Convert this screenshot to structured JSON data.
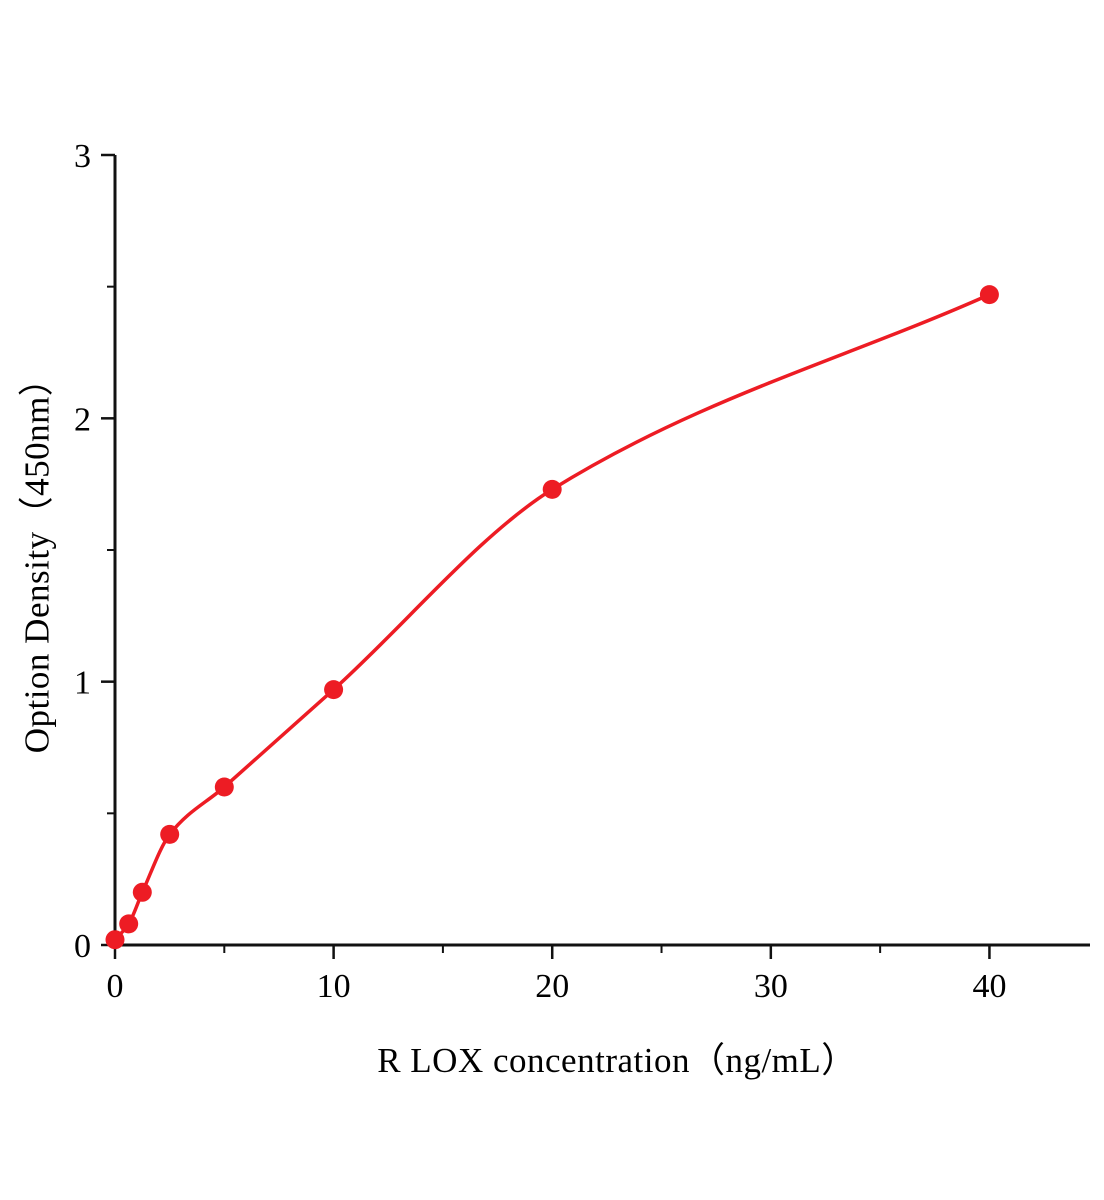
{
  "figure": {
    "background": "#ffffff",
    "axis_color": "#111111",
    "text_color": "#000000"
  },
  "chart_data": {
    "type": "scatter",
    "title": "",
    "xlabel": "R LOX  concentration（ng/mL）",
    "ylabel": "Option Density（450nm）",
    "x": [
      0,
      0.625,
      1.25,
      2.5,
      5,
      10,
      20,
      40
    ],
    "y": [
      0.02,
      0.08,
      0.2,
      0.42,
      0.6,
      0.97,
      1.73,
      2.47
    ],
    "fit_curve": "smooth monotone fit through data points",
    "xlim": [
      0,
      44.6
    ],
    "ylim": [
      0,
      3
    ],
    "x_ticks": [
      0,
      10,
      20,
      30,
      40
    ],
    "y_ticks": [
      0,
      1,
      2,
      3
    ],
    "x_minor_ticks": [
      5,
      15,
      25,
      35
    ],
    "y_minor_ticks": [
      0.5,
      1.5,
      2.5
    ],
    "grid": false,
    "legend": "none",
    "series_color": "#ed1c24",
    "marker": "circle",
    "marker_radius_px": 9.5
  }
}
